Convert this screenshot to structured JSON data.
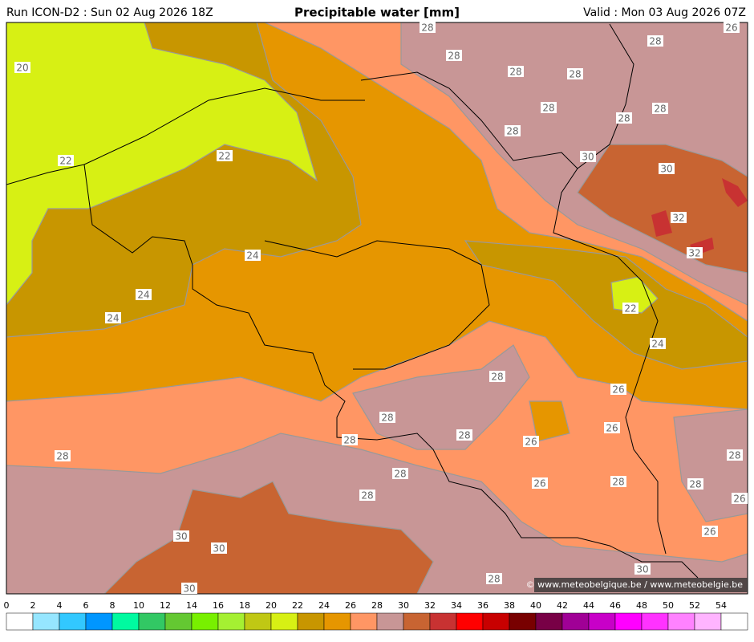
{
  "header": {
    "run": "Run ICON-D2 : Sun 02 Aug 2026 18Z",
    "title": "Precipitable water [mm]",
    "valid": "Valid : Mon 03 Aug 2026 07Z"
  },
  "contour_labels": [
    "28",
    "26",
    "20",
    "28",
    "28",
    "28",
    "28",
    "28",
    "28",
    "28",
    "28",
    "22",
    "22",
    "30",
    "30",
    "32",
    "32",
    "24",
    "24",
    "24",
    "22",
    "24",
    "28",
    "26",
    "28",
    "28",
    "28",
    "26",
    "26",
    "28",
    "28",
    "28",
    "26",
    "28",
    "28",
    "28",
    "26",
    "26",
    "30",
    "30",
    "30",
    "28",
    "30"
  ],
  "copyright": "© www.meteobelgique.be / www.meteobelgie.be",
  "colorbar": {
    "ticks": [
      0,
      2,
      4,
      6,
      8,
      10,
      12,
      14,
      16,
      18,
      20,
      22,
      24,
      26,
      28,
      30,
      32,
      34,
      36,
      38,
      40,
      42,
      44,
      46,
      48,
      50,
      52,
      54
    ],
    "colors": [
      "#ffffff",
      "#96e6ff",
      "#32c8ff",
      "#0096ff",
      "#00faa0",
      "#32c864",
      "#64c832",
      "#78f000",
      "#a5f032",
      "#c0c814",
      "#d7f014",
      "#c89600",
      "#e69600",
      "#ff9664",
      "#c89696",
      "#c86432",
      "#c83232",
      "#ff0000",
      "#c80000",
      "#780000",
      "#780046",
      "#a00096",
      "#c800c8",
      "#ff00ff",
      "#ff32ff",
      "#ff82ff",
      "#ffb4ff",
      "#ffffff"
    ]
  }
}
